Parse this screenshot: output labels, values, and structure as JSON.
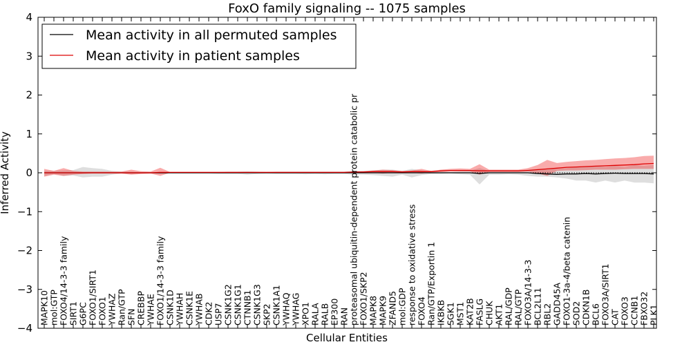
{
  "chart_data": {
    "type": "line",
    "title": "FoxO family signaling -- 1075 samples",
    "xlabel": "Cellular Entities",
    "ylabel": "Inferred Activity",
    "ylim": [
      -4,
      4
    ],
    "yticks": [
      -4,
      -3,
      -2,
      -1,
      0,
      1,
      2,
      3,
      4
    ],
    "ytick_labels": [
      "−4",
      "−3",
      "−2",
      "−1",
      "0",
      "1",
      "2",
      "3",
      "4"
    ],
    "legend_position": "top-left",
    "categories": [
      "MAPK10",
      "mol:GTP",
      "FOXO4/14-3-3 family",
      "SIRT1",
      "G6PC",
      "FOXO1/SIRT1",
      "FOXO1",
      "YWHAZ",
      "Ran/GTP",
      "SFN",
      "CREBBP",
      "YWHAE",
      "FOXO1/14-3-3 family",
      "CSNK1D",
      "YWHAH",
      "CSNK1E",
      "YWHAB",
      "CDK2",
      "USP7",
      "CSNK1G2",
      "CSNK1G1",
      "CTNNB1",
      "CSNK1G3",
      "SKP2",
      "CSNK1A1",
      "YWHAQ",
      "YWHAG",
      "XPO1",
      "RALA",
      "RALB",
      "EP300",
      "RAN",
      "proteasomal ubiquitin-dependent protein catabolic pr",
      "FOXO1/SKP2",
      "MAPK8",
      "MAPK9",
      "ZFAND5",
      "mol:GDP",
      "response to oxidative stress",
      "FOXO4",
      "Ran/GTP/Exportin 1",
      "IKBKB",
      "SGK1",
      "MST1",
      "KAT2B",
      "FASLG",
      "CHUK",
      "AKT1",
      "RAL/GDP",
      "RAL/GTP",
      "FOXO3A/14-3-3",
      "BCL2L11",
      "RBL2",
      "GADD45A",
      "FOXO1-3a-4/beta catenin",
      "SOD2",
      "CDKN1B",
      "BCL6",
      "FOXO3A/SIRT1",
      "CAT",
      "FOXO3",
      "CCNB1",
      "FBXO32",
      "PLK1"
    ],
    "series": [
      {
        "name": "Mean activity in all permuted samples",
        "color": "#000000",
        "values": [
          0,
          0,
          0,
          0,
          0,
          0,
          0,
          0,
          0,
          0,
          0,
          0,
          0,
          0,
          0,
          0,
          0,
          0,
          0,
          0,
          0,
          0,
          0,
          0,
          0,
          0,
          0,
          0,
          0,
          0,
          0,
          0,
          0,
          0,
          0,
          0,
          0,
          0,
          0,
          0,
          0,
          0,
          0,
          0,
          0,
          -0.02,
          0,
          0,
          0,
          0,
          0,
          -0.02,
          -0.03,
          -0.04,
          -0.03,
          -0.03,
          -0.02,
          -0.03,
          -0.02,
          -0.01,
          -0.02,
          -0.02,
          -0.02,
          -0.03
        ],
        "lower": [
          -0.08,
          -0.03,
          -0.08,
          -0.07,
          -0.12,
          -0.1,
          -0.1,
          -0.05,
          -0.02,
          -0.03,
          -0.02,
          -0.02,
          -0.02,
          -0.02,
          -0.02,
          -0.02,
          -0.02,
          -0.02,
          -0.03,
          -0.03,
          -0.03,
          -0.05,
          -0.03,
          -0.02,
          -0.03,
          -0.03,
          -0.03,
          -0.04,
          -0.03,
          -0.04,
          -0.03,
          -0.03,
          -0.05,
          -0.05,
          -0.06,
          -0.08,
          -0.1,
          -0.05,
          -0.12,
          -0.06,
          -0.03,
          -0.03,
          -0.02,
          -0.04,
          -0.05,
          -0.3,
          -0.05,
          -0.05,
          -0.04,
          -0.05,
          -0.08,
          -0.1,
          -0.1,
          -0.12,
          -0.15,
          -0.2,
          -0.2,
          -0.25,
          -0.2,
          -0.25,
          -0.2,
          -0.25,
          -0.25,
          -0.27
        ],
        "upper": [
          0.05,
          0.05,
          0.06,
          0.07,
          0.15,
          0.12,
          0.1,
          0.05,
          0.03,
          0.03,
          0.02,
          0.02,
          0.02,
          0.02,
          0.02,
          0.02,
          0.02,
          0.02,
          0.02,
          0.03,
          0.03,
          0.04,
          0.03,
          0.02,
          0.03,
          0.03,
          0.03,
          0.03,
          0.03,
          0.03,
          0.03,
          0.03,
          0.05,
          0.05,
          0.06,
          0.08,
          0.08,
          0.05,
          0.1,
          0.06,
          0.03,
          0.03,
          0.02,
          0.04,
          0.05,
          0.12,
          0.05,
          0.05,
          0.04,
          0.05,
          0.08,
          0.1,
          0.1,
          0.1,
          0.12,
          0.15,
          0.15,
          0.18,
          0.15,
          0.18,
          0.15,
          0.2,
          0.18,
          0.2
        ]
      },
      {
        "name": "Mean activity in patient samples",
        "color": "#dd0000",
        "values": [
          0,
          0,
          0,
          0,
          0,
          0,
          0,
          0,
          0,
          0,
          0,
          0,
          0.01,
          0.01,
          0.01,
          0.01,
          0.01,
          0.01,
          0.01,
          0.01,
          0.01,
          0.01,
          0.01,
          0.01,
          0.01,
          0.01,
          0.01,
          0.01,
          0.01,
          0.01,
          0.01,
          0.01,
          0.02,
          0.02,
          0.03,
          0.03,
          0.03,
          0.02,
          0.03,
          0.03,
          0.03,
          0.05,
          0.06,
          0.06,
          0.06,
          0.05,
          0.05,
          0.05,
          0.05,
          0.05,
          0.06,
          0.08,
          0.1,
          0.12,
          0.14,
          0.15,
          0.16,
          0.17,
          0.18,
          0.19,
          0.2,
          0.21,
          0.23,
          0.24
        ],
        "lower": [
          -0.1,
          -0.05,
          -0.08,
          -0.05,
          -0.03,
          -0.02,
          -0.02,
          -0.02,
          -0.02,
          -0.05,
          -0.03,
          -0.02,
          -0.08,
          0,
          0,
          0,
          0,
          0,
          0,
          0,
          0,
          0,
          0,
          0,
          0,
          0,
          0,
          0,
          0,
          0,
          0,
          0,
          0,
          0,
          0,
          -0.02,
          0,
          0,
          0,
          -0.02,
          0.01,
          0.02,
          0.03,
          0.03,
          0.03,
          -0.05,
          0.02,
          0.02,
          0.02,
          0.02,
          0.03,
          -0.02,
          -0.08,
          0.05,
          0.06,
          0.06,
          0.07,
          0.08,
          0.08,
          0.08,
          0.09,
          0.1,
          0.1,
          0.1
        ],
        "upper": [
          0.1,
          0.05,
          0.12,
          0.05,
          0.03,
          0.03,
          0.03,
          0.03,
          0.03,
          0.08,
          0.04,
          0.03,
          0.13,
          0.02,
          0.02,
          0.02,
          0.02,
          0.02,
          0.02,
          0.02,
          0.02,
          0.02,
          0.02,
          0.02,
          0.02,
          0.02,
          0.02,
          0.02,
          0.02,
          0.02,
          0.02,
          0.02,
          0.03,
          0.04,
          0.06,
          0.08,
          0.07,
          0.05,
          0.06,
          0.1,
          0.05,
          0.08,
          0.1,
          0.11,
          0.1,
          0.22,
          0.08,
          0.08,
          0.08,
          0.08,
          0.12,
          0.2,
          0.33,
          0.25,
          0.28,
          0.3,
          0.32,
          0.33,
          0.35,
          0.37,
          0.38,
          0.4,
          0.43,
          0.44
        ]
      }
    ],
    "baseline": {
      "style": "dotted",
      "color": "#000000",
      "value": 0
    }
  }
}
